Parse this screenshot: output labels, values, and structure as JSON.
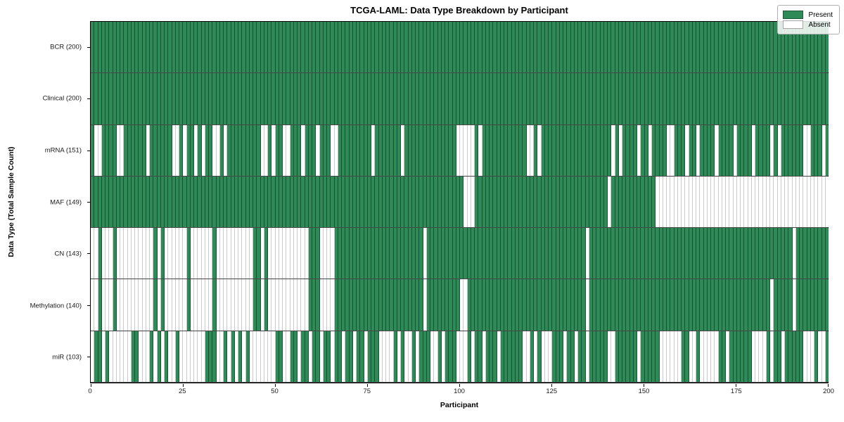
{
  "title": "TCGA-LAML: Data Type Breakdown by Participant",
  "xlabel": "Participant",
  "ylabel": "Data Type (Total Sample Count)",
  "legend": {
    "present_label": "Present",
    "absent_label": "Absent"
  },
  "colors": {
    "present": "#2e8b57",
    "absent": "#ffffff",
    "frame": "#000000"
  },
  "chart_data": {
    "type": "heatmap",
    "title": "TCGA-LAML: Data Type Breakdown by Participant",
    "xlabel": "Participant",
    "ylabel": "Data Type (Total Sample Count)",
    "x_range": [
      0,
      200
    ],
    "x_ticks": [
      0,
      25,
      50,
      75,
      100,
      125,
      150,
      175,
      200
    ],
    "legend_entries": [
      "Present",
      "Absent"
    ],
    "legend_position": "upper right",
    "value_encoding": {
      "1": "Present",
      "0": "Absent"
    },
    "rows": [
      {
        "label": "BCR (200)",
        "name": "BCR",
        "present_count": 200,
        "pattern_chunks": [
          "1111111111",
          "1111111111",
          "1111111111",
          "1111111111",
          "1111111111",
          "1111111111",
          "1111111111",
          "1111111111",
          "1111111111",
          "1111111111",
          "1111111111",
          "1111111111",
          "1111111111",
          "1111111111",
          "1111111111",
          "1111111111",
          "1111111111",
          "1111111111",
          "1111111111",
          "1111111111"
        ]
      },
      {
        "label": "Clinical (200)",
        "name": "Clinical",
        "present_count": 200,
        "pattern_chunks": [
          "1111111111",
          "1111111111",
          "1111111111",
          "1111111111",
          "1111111111",
          "1111111111",
          "1111111111",
          "1111111111",
          "1111111111",
          "1111111111",
          "1111111111",
          "1111111111",
          "1111111111",
          "1111111111",
          "1111111111",
          "1111111111",
          "1111111111",
          "1111111111",
          "1111111111",
          "1111111111"
        ]
      },
      {
        "label": "mRNA (151)",
        "name": "mRNA",
        "present_count": 151,
        "pattern_chunks": [
          "1001111001",
          "1111101111",
          "1100101101",
          "0110010111",
          "1111110010",
          "1100111011",
          "1011100111",
          "1111110111",
          "1111011111",
          "1111111110",
          "0000101111",
          "1111111100",
          "1011111111",
          "1111111111",
          "1010111101",
          "1011110011",
          "1011011110",
          "1111011110",
          "1111010111",
          "1110011101"
        ]
      },
      {
        "label": "MAF (149)",
        "name": "MAF",
        "present_count": 149,
        "pattern_chunks": [
          "1111111111",
          "1111111111",
          "1111111111",
          "1111111111",
          "1111111111",
          "1111111111",
          "1111111111",
          "1111111111",
          "1111111111",
          "1111111111",
          "1000111111",
          "1111111111",
          "1111111111",
          "1111111111",
          "0111111111",
          "1110000000",
          "0000000000",
          "0000000000",
          "0000000000",
          "0000000000"
        ]
      },
      {
        "label": "CN (143)",
        "name": "CN",
        "present_count": 143,
        "pattern_chunks": [
          "0010001000",
          "0000000101",
          "0000001000",
          "0001000000",
          "0000110100",
          "0000000001",
          "1100001111",
          "1111111111",
          "1111111111",
          "0111111111",
          "1111111111",
          "1111111111",
          "1111111111",
          "1111011111",
          "1111111111",
          "1111111111",
          "1111111111",
          "1111111111",
          "1111111111",
          "0111111111"
        ]
      },
      {
        "label": "Methylation (140)",
        "name": "Methylation",
        "present_count": 140,
        "pattern_chunks": [
          "0010001000",
          "0000000101",
          "0000001000",
          "0001000000",
          "0000110100",
          "0000000001",
          "1100001111",
          "1111111111",
          "1111111111",
          "0111111111",
          "0011111111",
          "1111111111",
          "1111111111",
          "1111011111",
          "1111111111",
          "1111111111",
          "1111111111",
          "1111111111",
          "1111011111",
          "0111111111"
        ]
      },
      {
        "label": "miR (103)",
        "name": "miR",
        "present_count": 103,
        "pattern_chunks": [
          "0110100000",
          "0110001010",
          "1001000000",
          "0111001010",
          "1010000000",
          "1100110110",
          "1101101101",
          "1011011100",
          "0010100101",
          "1100101110",
          "0010110111",
          "0111111001",
          "0100011101",
          "1011011111",
          "0011111101",
          "1111000000",
          "1100100000",
          "1101111110",
          "0001011011",
          "1110001001"
        ]
      }
    ]
  }
}
